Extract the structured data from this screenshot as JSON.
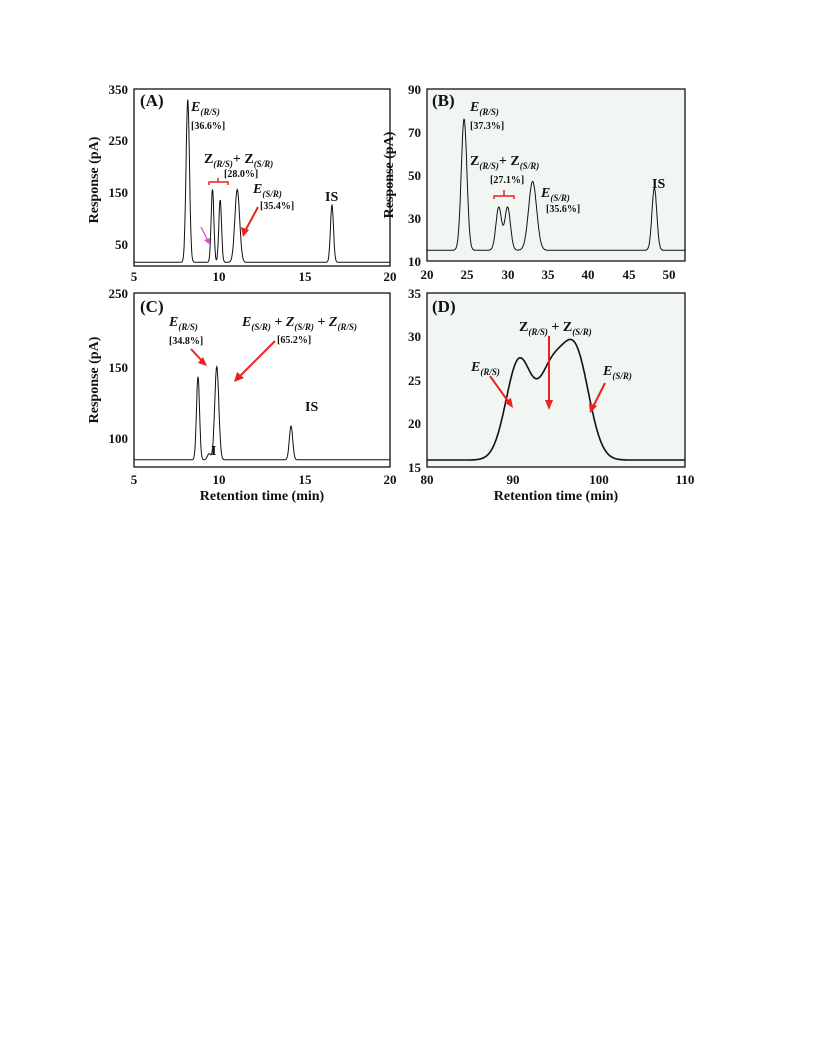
{
  "chart_data": [
    {
      "panel": "(A)",
      "type": "line",
      "xlabel": "",
      "ylabel": "Response (pA)",
      "xlim": [
        5,
        20
      ],
      "ylim": [
        15,
        350
      ],
      "xticks": [
        "5",
        "10",
        "15",
        "20"
      ],
      "yticks": [
        "50",
        "150",
        "250",
        "350"
      ],
      "background": "#ffffff",
      "baseline": 22,
      "peaks": [
        {
          "rt": 8.15,
          "height": 330,
          "width": 0.1
        },
        {
          "rt": 9.6,
          "height": 160,
          "width": 0.08
        },
        {
          "rt": 10.05,
          "height": 140,
          "width": 0.08
        },
        {
          "rt": 11.05,
          "height": 160,
          "width": 0.14
        },
        {
          "rt": 16.6,
          "height": 130,
          "width": 0.09
        }
      ],
      "annotations": [
        {
          "main": "E",
          "sub": "(R/S)",
          "pct": "[36.6%]",
          "italic": true
        },
        {
          "main": "Z",
          "sub": "(R/S)",
          "main2": "+  Z",
          "sub2": "(S/R)",
          "pct": "[28.0%]"
        },
        {
          "main": "E",
          "sub": "(S/R)",
          "pct": "[35.4%]",
          "italic": true
        },
        {
          "label": "IS"
        }
      ]
    },
    {
      "panel": "(B)",
      "type": "line",
      "xlabel": "",
      "ylabel": "Response (pA)",
      "xlim": [
        20,
        52
      ],
      "ylim": [
        10,
        90
      ],
      "xticks": [
        "20",
        "25",
        "30",
        "35",
        "40",
        "45",
        "50"
      ],
      "yticks": [
        "10",
        "30",
        "50",
        "70",
        "90"
      ],
      "background": "#f1f6f3",
      "baseline": 15,
      "peaks": [
        {
          "rt": 24.6,
          "height": 76,
          "width": 0.35
        },
        {
          "rt": 28.9,
          "height": 35,
          "width": 0.35
        },
        {
          "rt": 30.0,
          "height": 35,
          "width": 0.35
        },
        {
          "rt": 33.1,
          "height": 47,
          "width": 0.5
        },
        {
          "rt": 48.2,
          "height": 44,
          "width": 0.3
        }
      ],
      "annotations": [
        {
          "main": "E",
          "sub": "(R/S)",
          "pct": "[37.3%]",
          "italic": true
        },
        {
          "main": "Z",
          "sub": "(R/S)",
          "main2": "+  Z",
          "sub2": "(S/R)",
          "pct": "[27.1%]"
        },
        {
          "main": "E",
          "sub": "(S/R)",
          "pct": "[35.6%]",
          "italic": true
        },
        {
          "label": "IS"
        }
      ]
    },
    {
      "panel": "(C)",
      "type": "line",
      "xlabel": "Retention time (min)",
      "ylabel": "Response (pA)",
      "xlim": [
        5,
        20
      ],
      "ylim": [
        80,
        250
      ],
      "xticks": [
        "5",
        "10",
        "15",
        "20"
      ],
      "yticks": [
        "100",
        "150",
        "250"
      ],
      "background": "#ffffff",
      "baseline": 87,
      "peaks": [
        {
          "rt": 8.75,
          "height": 168,
          "width": 0.09
        },
        {
          "rt": 9.4,
          "height": 93,
          "width": 0.1
        },
        {
          "rt": 9.85,
          "height": 178,
          "width": 0.12
        },
        {
          "rt": 14.2,
          "height": 120,
          "width": 0.1
        }
      ],
      "annotations": [
        {
          "main": "E",
          "sub": "(R/S)",
          "pct": "[34.8%]",
          "italic": true
        },
        {
          "main": "E",
          "sub": "(S/R)",
          "main2": " + Z",
          "sub2": "(S/R)",
          "main3": " +  Z",
          "sub3": "(R/S)",
          "pct": "[65.2%]"
        },
        {
          "label": "I"
        },
        {
          "label": "IS"
        }
      ]
    },
    {
      "panel": "(D)",
      "type": "line",
      "xlabel": "Retention time (min)",
      "ylabel": "",
      "xlim": [
        80,
        110
      ],
      "ylim": [
        15,
        35
      ],
      "xticks": [
        "80",
        "90",
        "100",
        "110"
      ],
      "yticks": [
        "15",
        "20",
        "25",
        "30",
        "35"
      ],
      "background": "#f1f6f3",
      "baseline": 15.8,
      "peaks": [
        {
          "rt": 90.7,
          "height": 27.2,
          "width": 1.5
        },
        {
          "rt": 94.3,
          "height": 24.3,
          "width": 1.4
        },
        {
          "rt": 97.2,
          "height": 28.3,
          "width": 1.6
        }
      ],
      "annotations": [
        {
          "main": "E",
          "sub": "(R/S)",
          "italic": true
        },
        {
          "main": "Z",
          "sub": "(R/S)",
          "main2": " + Z",
          "sub2": "(S/R)"
        },
        {
          "main": "E",
          "sub": "(S/R)",
          "italic": true
        }
      ]
    }
  ],
  "colors": {
    "trace": "#111111",
    "arrow": "#e8231f",
    "pink_arrow": "#e04fd0"
  }
}
